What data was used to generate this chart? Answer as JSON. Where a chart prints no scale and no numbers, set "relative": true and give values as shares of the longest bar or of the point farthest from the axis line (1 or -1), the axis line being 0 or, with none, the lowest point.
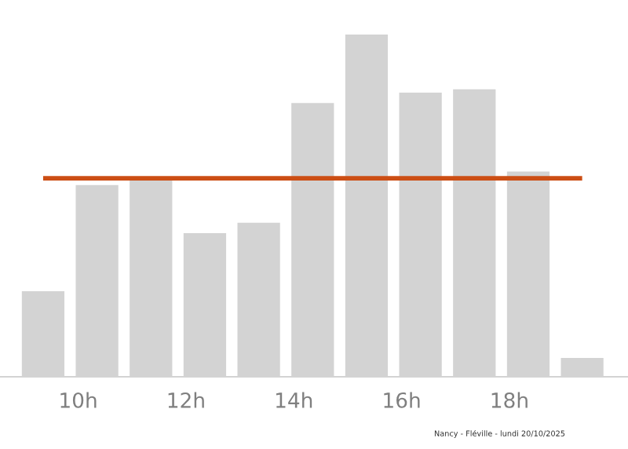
{
  "chart_data": {
    "type": "bar",
    "relative": true,
    "x": [
      9.35,
      10.35,
      11.35,
      12.35,
      13.35,
      14.35,
      15.35,
      16.35,
      17.35,
      18.35,
      19.35
    ],
    "values": [
      0.25,
      0.56,
      0.58,
      0.42,
      0.45,
      0.8,
      1.0,
      0.83,
      0.84,
      0.6,
      0.055
    ],
    "color": "#d3d3d3",
    "xlim": [
      8.55,
      20.2
    ],
    "xticks": [
      {
        "value": 10,
        "label": "10h"
      },
      {
        "value": 12,
        "label": "12h"
      },
      {
        "value": 14,
        "label": "14h"
      },
      {
        "value": 16,
        "label": "16h"
      },
      {
        "value": 18,
        "label": "18h"
      }
    ],
    "ref_lines": [
      {
        "axis": "y",
        "value": 0.58,
        "color": "#cc4e14"
      }
    ],
    "annotations": [
      "Nancy - Fléville - lundi 20/10/2025"
    ],
    "grid": false
  }
}
